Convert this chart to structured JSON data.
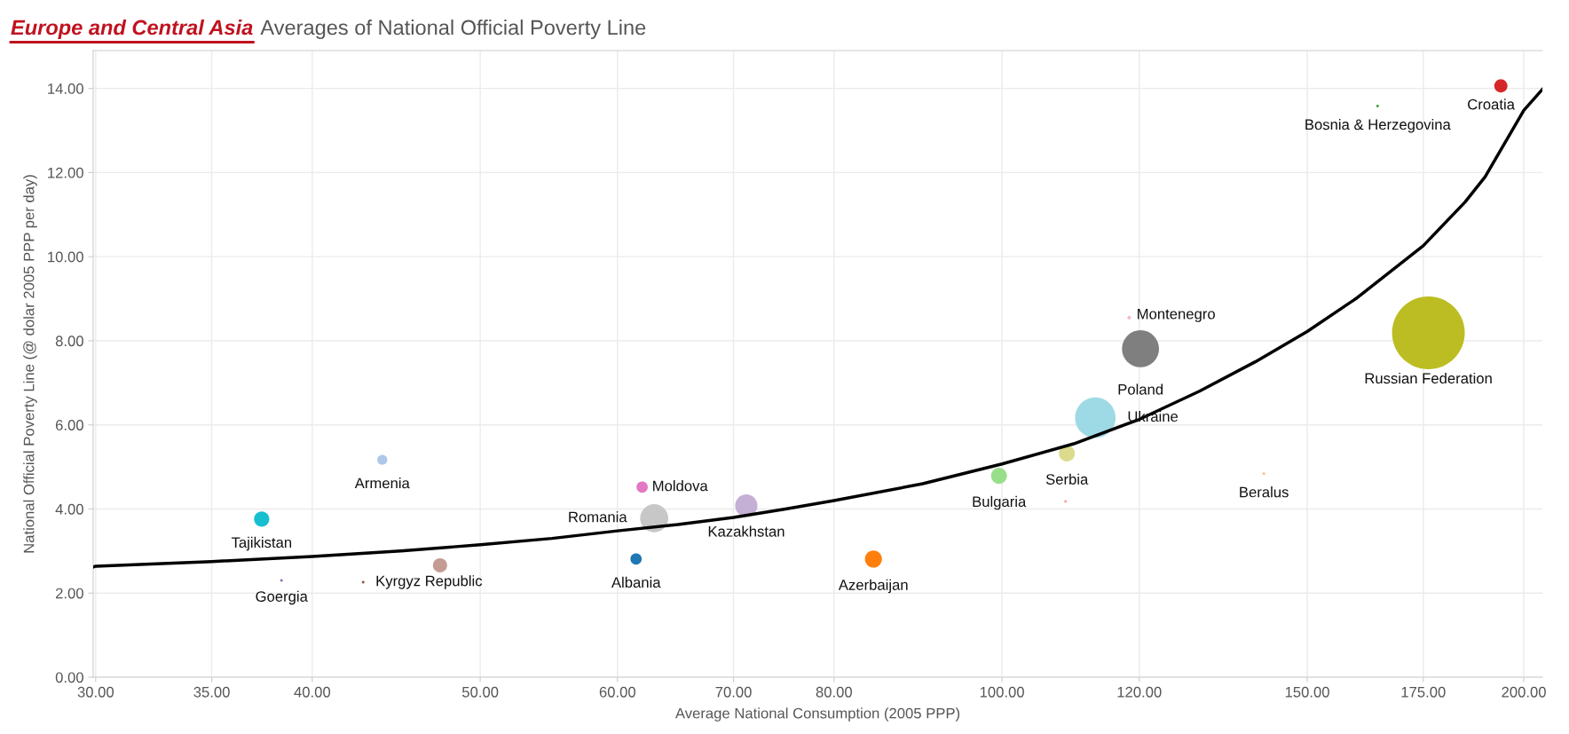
{
  "chart_data": {
    "type": "bubble",
    "title": "Europe and Central Asia",
    "subtitle": "Averages of National Official Poverty Line",
    "xlabel": "Average National Consumption (2005 PPP)",
    "ylabel": "National Official Poverty Line (@ dolar 2005 PPP per day)",
    "log": "x",
    "grid": true,
    "legend": false,
    "xlim": [
      29.9,
      205
    ],
    "ylim": [
      0,
      14.9
    ],
    "xticks": [
      {
        "value": 30,
        "label": "30.00"
      },
      {
        "value": 35,
        "label": "35.00"
      },
      {
        "value": 40,
        "label": "40.00"
      },
      {
        "value": 50,
        "label": "50.00"
      },
      {
        "value": 60,
        "label": "60.00"
      },
      {
        "value": 70,
        "label": "70.00"
      },
      {
        "value": 80,
        "label": "80.00"
      },
      {
        "value": 100,
        "label": "100.00"
      },
      {
        "value": 120,
        "label": "120.00"
      },
      {
        "value": 150,
        "label": "150.00"
      },
      {
        "value": 175,
        "label": "175.00"
      },
      {
        "value": 200,
        "label": "200.00"
      }
    ],
    "yticks": [
      {
        "value": 0,
        "label": "0.00"
      },
      {
        "value": 2,
        "label": "2.00"
      },
      {
        "value": 4,
        "label": "4.00"
      },
      {
        "value": 6,
        "label": "6.00"
      },
      {
        "value": 8,
        "label": "8.00"
      },
      {
        "value": 10,
        "label": "10.00"
      },
      {
        "value": 12,
        "label": "12.00"
      },
      {
        "value": 14,
        "label": "14.00"
      }
    ],
    "series": [
      {
        "x": [
          37.4,
          43.9,
          38.4,
          42.8,
          47.4,
          61.5,
          62.0,
          63.0,
          71.2,
          84.3,
          99.6,
          109.0,
          108.8,
          113.2,
          141.6,
          194,
          164.7,
          118.4,
          120.2,
          176.2
        ],
        "values": [
          3.76,
          5.17,
          2.3,
          2.26,
          2.66,
          2.81,
          4.52,
          3.78,
          4.08,
          2.81,
          4.79,
          5.32,
          4.18,
          6.17,
          4.84,
          14.06,
          13.58,
          8.55,
          7.81,
          8.19
        ],
        "sizes": [
          0.044,
          0.019,
          0.0013,
          0.0013,
          0.038,
          0.024,
          0.024,
          0.15,
          0.094,
          0.055,
          0.048,
          0.048,
          0.0013,
          0.31,
          0.0013,
          0.033,
          0.0013,
          0.0024,
          0.26,
          1
        ],
        "colors": [
          "#17becf",
          "#aec7e8",
          "#9467bd",
          "#8c564b",
          "#c49c94",
          "#1f77b4",
          "#e377c2",
          "#c7c7c7",
          "#c5b0d5",
          "#ff7f0e",
          "#98df8a",
          "#dbdb8d",
          "#ff9896",
          "#9edae5",
          "#ffbb78",
          "#d62728",
          "#2ca02c",
          "#f7b6d2",
          "#7f7f7f",
          "#bcbd22"
        ]
      },
      {
        "type": "line",
        "color": "#000000",
        "x": [
          29.9,
          30,
          35,
          40,
          45,
          50,
          55,
          60,
          65,
          70,
          75,
          80,
          90,
          100,
          110,
          120,
          130,
          140,
          150,
          160,
          175,
          185,
          190,
          200,
          205
        ],
        "values": [
          2.62,
          2.64,
          2.75,
          2.87,
          3.0,
          3.15,
          3.3,
          3.48,
          3.63,
          3.8,
          4.0,
          4.2,
          4.6,
          5.07,
          5.55,
          6.13,
          6.8,
          7.5,
          8.22,
          9.0,
          10.26,
          11.3,
          11.9,
          13.48,
          13.98
        ]
      }
    ],
    "annotations": [
      {
        "text": "Tajikistan",
        "x": 37.4,
        "y": 3.76
      },
      {
        "text": "Armenia",
        "x": 43.9,
        "y": 5.17
      },
      {
        "text": "Goergia",
        "x": 38.4,
        "y": 2.3
      },
      {
        "text": "Kyrgyz Republic",
        "x": 42.8,
        "y": 2.26
      },
      {
        "text": "Albania",
        "x": 61.5,
        "y": 2.81
      },
      {
        "text": "Moldova",
        "x": 62.0,
        "y": 4.52
      },
      {
        "text": "Romania",
        "x": 63.0,
        "y": 3.78
      },
      {
        "text": "Kazakhstan",
        "x": 71.2,
        "y": 4.08
      },
      {
        "text": "Azerbaijan",
        "x": 84.3,
        "y": 2.81
      },
      {
        "text": "Bulgaria",
        "x": 99.6,
        "y": 4.79
      },
      {
        "text": "Serbia",
        "x": 109.0,
        "y": 5.32
      },
      {
        "text": "Ukraine",
        "x": 113.2,
        "y": 6.17
      },
      {
        "text": "Beralus",
        "x": 141.6,
        "y": 4.84
      },
      {
        "text": "Croatia",
        "x": 194,
        "y": 14.06
      },
      {
        "text": "Bosnia & Herzegovina",
        "x": 164.7,
        "y": 13.58
      },
      {
        "text": "Montenegro",
        "x": 118.4,
        "y": 8.55
      },
      {
        "text": "Poland",
        "x": 120.2,
        "y": 7.81
      },
      {
        "text": "Russian Federation",
        "x": 176.2,
        "y": 8.19
      }
    ]
  }
}
